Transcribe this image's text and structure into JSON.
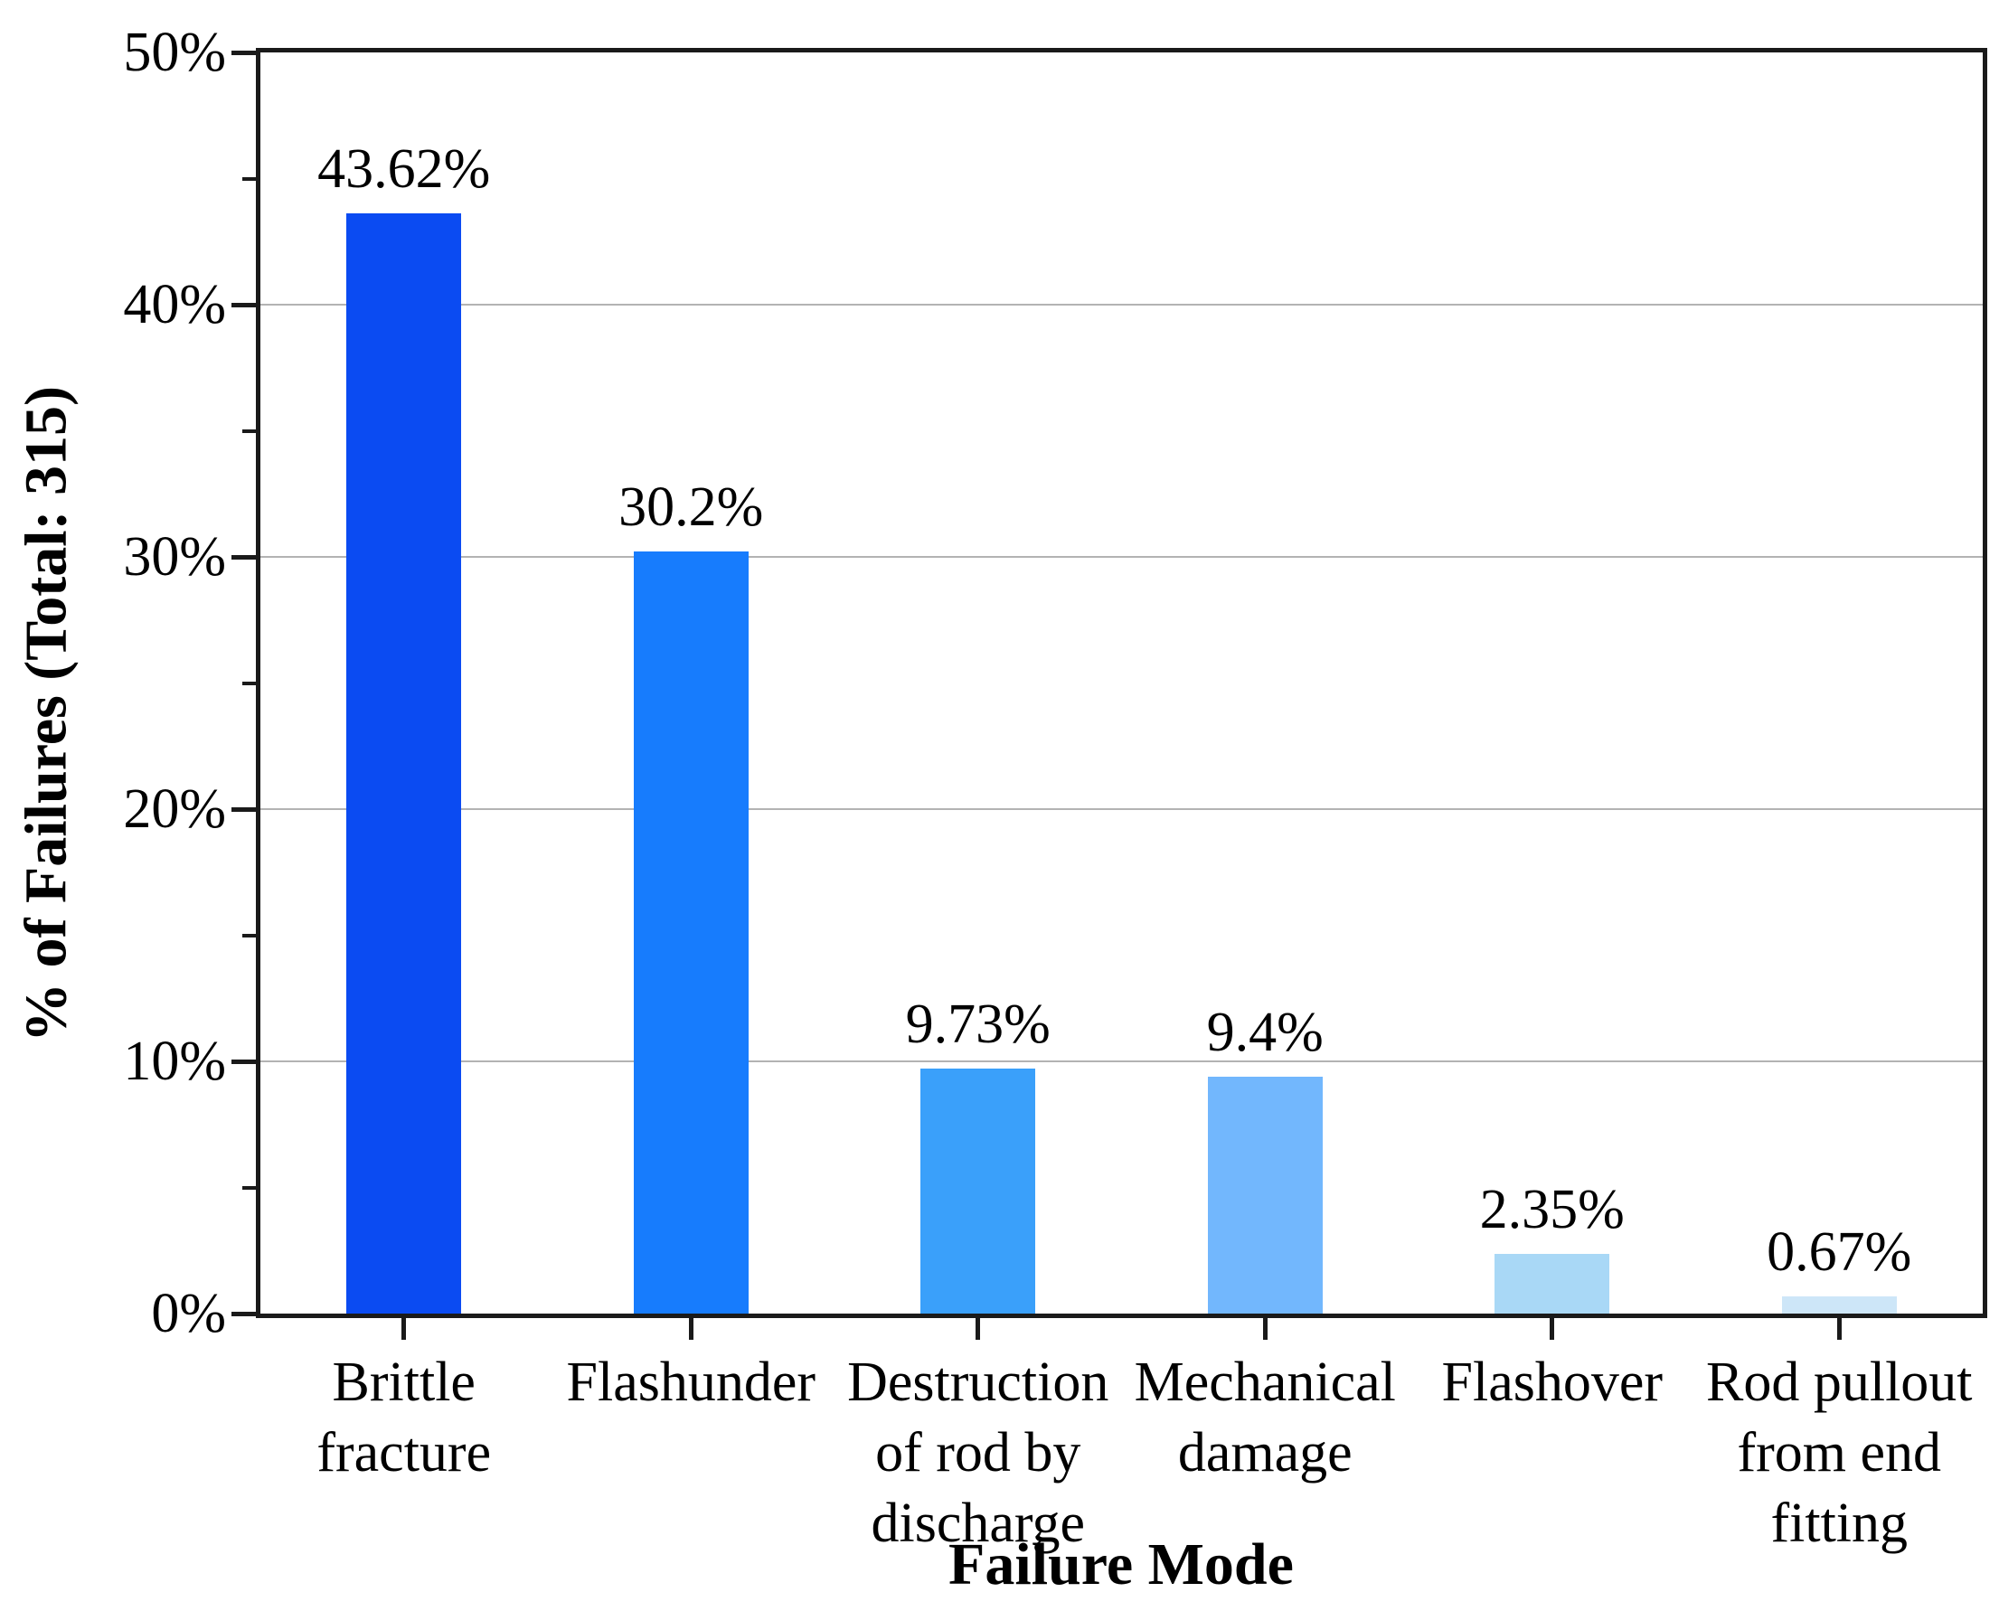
{
  "figure": {
    "background_color": "#ffffff",
    "axis_color": "#1a1a1a",
    "grid_color": "#b3b3b3",
    "text_color": "#000000"
  },
  "chart_data": {
    "type": "bar",
    "title": "",
    "xlabel": "Failure Mode",
    "ylabel": "% of Failures (Total: 315)",
    "total_failures": 315,
    "ylim": [
      0,
      50
    ],
    "grid": "horizontal-major-gridlines",
    "legend_position": "none",
    "y_major_ticks": [
      0,
      10,
      20,
      30,
      40,
      50
    ],
    "y_major_tick_labels": [
      "0%",
      "10%",
      "20%",
      "30%",
      "40%",
      "50%"
    ],
    "y_minor_ticks": [
      5,
      15,
      25,
      35,
      45
    ],
    "categories": [
      "Brittle fracture",
      "Flashunder",
      "Destruction of rod by discharge",
      "Mechanical damage",
      "Flashover",
      "Rod pullout from end fitting"
    ],
    "category_label_lines": [
      [
        "Brittle",
        "fracture"
      ],
      [
        "Flashunder"
      ],
      [
        "Destruction",
        "of rod by",
        "discharge"
      ],
      [
        "Mechanical",
        "damage"
      ],
      [
        "Flashover"
      ],
      [
        "Rod pullout",
        "from end",
        "fitting"
      ]
    ],
    "values": [
      43.62,
      30.2,
      9.73,
      9.4,
      2.35,
      0.67
    ],
    "value_labels": [
      "43.62%",
      "30.2%",
      "9.73%",
      "9.4%",
      "2.35%",
      "0.67%"
    ],
    "bar_colors": [
      "#0b4bf2",
      "#177cfd",
      "#3aa0fa",
      "#72b7fd",
      "#a9d8f6",
      "#cde6f8"
    ]
  }
}
